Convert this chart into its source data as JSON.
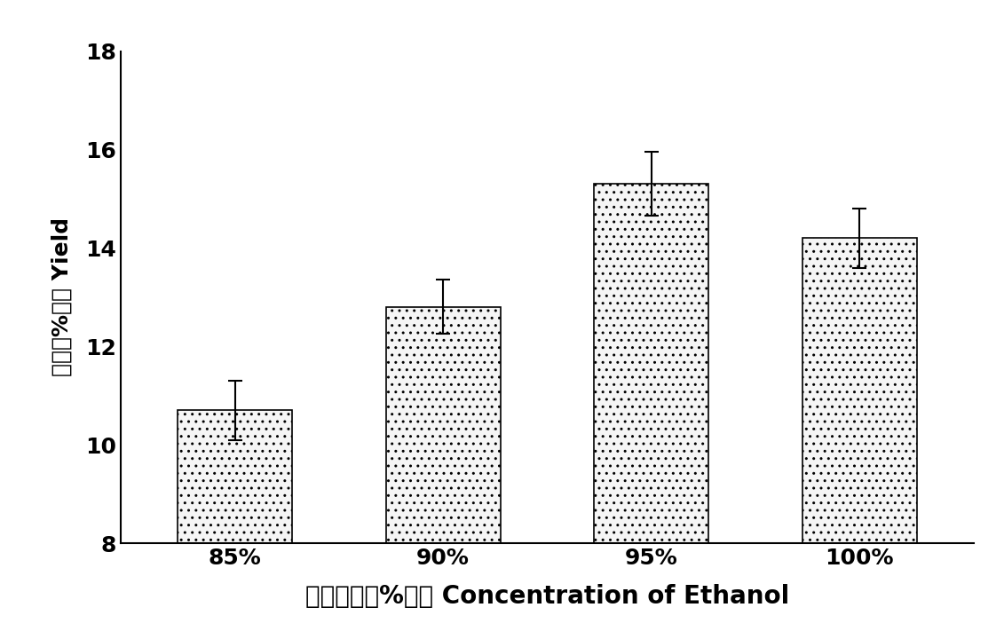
{
  "categories": [
    "85%",
    "90%",
    "95%",
    "100%"
  ],
  "values": [
    10.7,
    12.8,
    15.3,
    14.2
  ],
  "errors": [
    0.6,
    0.55,
    0.65,
    0.6
  ],
  "bar_color": "#f5f5f5",
  "bar_edgecolor": "#000000",
  "xlabel": "乙醇浓度（%）／ Concentration of Ethanol",
  "ylabel": "得率（%）／ Yield",
  "ylim": [
    8,
    18
  ],
  "yticks": [
    8,
    10,
    12,
    14,
    16,
    18
  ],
  "xlabel_fontsize": 20,
  "ylabel_fontsize": 18,
  "tick_fontsize": 18,
  "bar_width": 0.55,
  "background_color": "#ffffff",
  "hatch": "..",
  "error_capsize": 6,
  "error_linewidth": 1.5,
  "error_color": "#000000"
}
